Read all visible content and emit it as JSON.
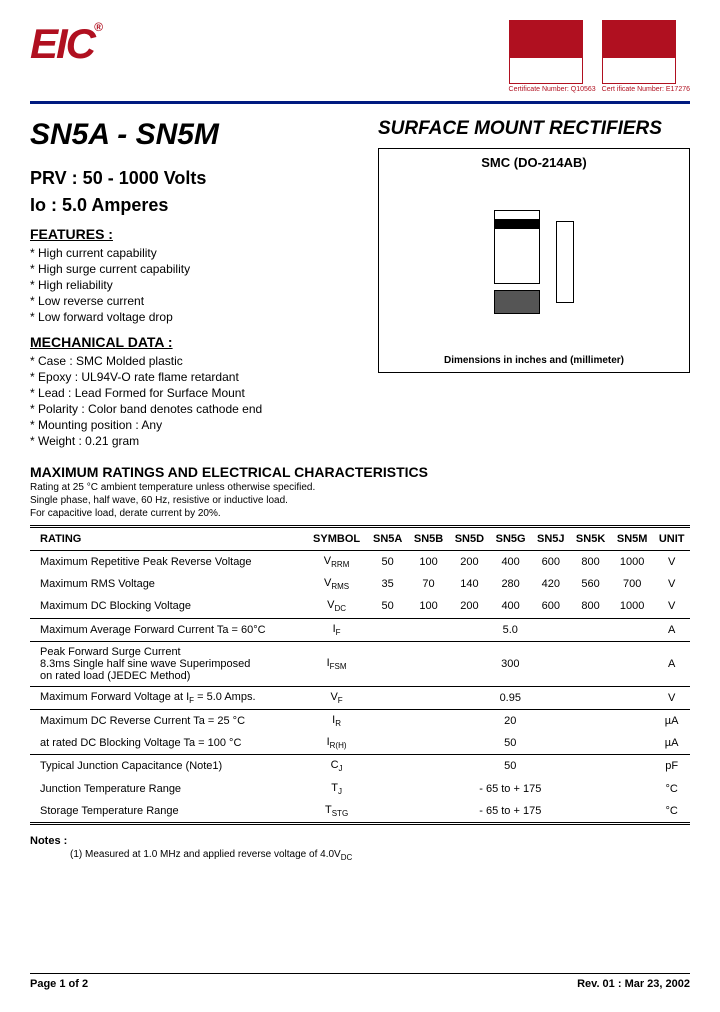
{
  "logo_text": "EIC",
  "certs": [
    {
      "label": "Certificate Number: Q10563"
    },
    {
      "label": "Cert ificate Number: E17276"
    }
  ],
  "part_title": "SN5A - SN5M",
  "subtitle": "SURFACE MOUNT RECTIFIERS",
  "spec1": "PRV : 50 - 1000 Volts",
  "spec2": "Io : 5.0 Amperes",
  "features_h": "FEATURES :",
  "features": [
    "High current capability",
    "High surge current capability",
    "High reliability",
    "Low reverse current",
    "Low forward voltage drop"
  ],
  "mech_h": "MECHANICAL DATA :",
  "mech": [
    "Case :  SMC Molded plastic",
    "Epoxy : UL94V-O rate flame retardant",
    "Lead : Lead Formed for Surface Mount",
    "Polarity : Color band denotes cathode end",
    "Mounting  position : Any",
    "Weight :  0.21 gram"
  ],
  "diagram_title": "SMC (DO-214AB)",
  "diagram_note": "Dimensions in inches and  (millimeter)",
  "ratings_h": "MAXIMUM RATINGS AND ELECTRICAL CHARACTERISTICS",
  "ratings_sub": [
    "Rating at 25 °C ambient temperature unless otherwise specified.",
    "Single phase, half wave, 60 Hz, resistive or inductive load.",
    "For capacitive load, derate current by 20%."
  ],
  "table": {
    "headers": [
      "RATING",
      "SYMBOL",
      "SN5A",
      "SN5B",
      "SN5D",
      "SN5G",
      "SN5J",
      "SN5K",
      "SN5M",
      "UNIT"
    ],
    "rows": [
      {
        "sep": false,
        "cells": [
          "Maximum Repetitive Peak Reverse Voltage",
          "V<span class='sub'>RRM</span>",
          "50",
          "100",
          "200",
          "400",
          "600",
          "800",
          "1000",
          "V"
        ]
      },
      {
        "sep": false,
        "cells": [
          "Maximum RMS Voltage",
          "V<span class='sub'>RMS</span>",
          "35",
          "70",
          "140",
          "280",
          "420",
          "560",
          "700",
          "V"
        ]
      },
      {
        "sep": false,
        "cells": [
          "Maximum DC Blocking Voltage",
          "V<span class='sub'>DC</span>",
          "50",
          "100",
          "200",
          "400",
          "600",
          "800",
          "1000",
          "V"
        ]
      },
      {
        "sep": true,
        "span": true,
        "cells": [
          "Maximum Average Forward Current      Ta = 60°C",
          "I<span class='sub'>F</span>",
          "5.0",
          "A"
        ]
      },
      {
        "sep": true,
        "span": true,
        "cells": [
          "Peak Forward Surge Current<br>8.3ms Single half sine wave Superimposed<br>on rated load  (JEDEC Method)",
          "I<span class='sub'>FSM</span>",
          "300",
          "A"
        ]
      },
      {
        "sep": true,
        "span": true,
        "cells": [
          "Maximum Forward Voltage at I<span class='sub'>F</span> = 5.0 Amps.",
          "V<span class='sub'>F</span>",
          "0.95",
          "V"
        ]
      },
      {
        "sep": true,
        "span": true,
        "cells": [
          "Maximum DC Reverse Current        Ta = 25 °C",
          "I<span class='sub'>R</span>",
          "20",
          "µA"
        ]
      },
      {
        "sep": false,
        "span": true,
        "cells": [
          "at rated DC Blocking Voltage         Ta = 100 °C",
          "I<span class='sub'>R(H)</span>",
          "50",
          "µA"
        ]
      },
      {
        "sep": true,
        "span": true,
        "cells": [
          "Typical Junction Capacitance (Note1)",
          "C<span class='sub'>J</span>",
          "50",
          "pF"
        ]
      },
      {
        "sep": false,
        "span": true,
        "cells": [
          "Junction Temperature Range",
          "T<span class='sub'>J</span>",
          "- 65 to + 175",
          "°C"
        ]
      },
      {
        "sep": false,
        "span": true,
        "cells": [
          "Storage Temperature Range",
          "T<span class='sub'>STG</span>",
          "- 65 to + 175",
          "°C"
        ]
      }
    ]
  },
  "notes_h": "Notes :",
  "notes_t": "(1) Measured at 1.0 MHz and applied  reverse voltage of 4.0V<span class='sub'>DC</span>",
  "footer_left": "Page 1 of 2",
  "footer_right": "Rev. 01 : Mar 23, 2002"
}
